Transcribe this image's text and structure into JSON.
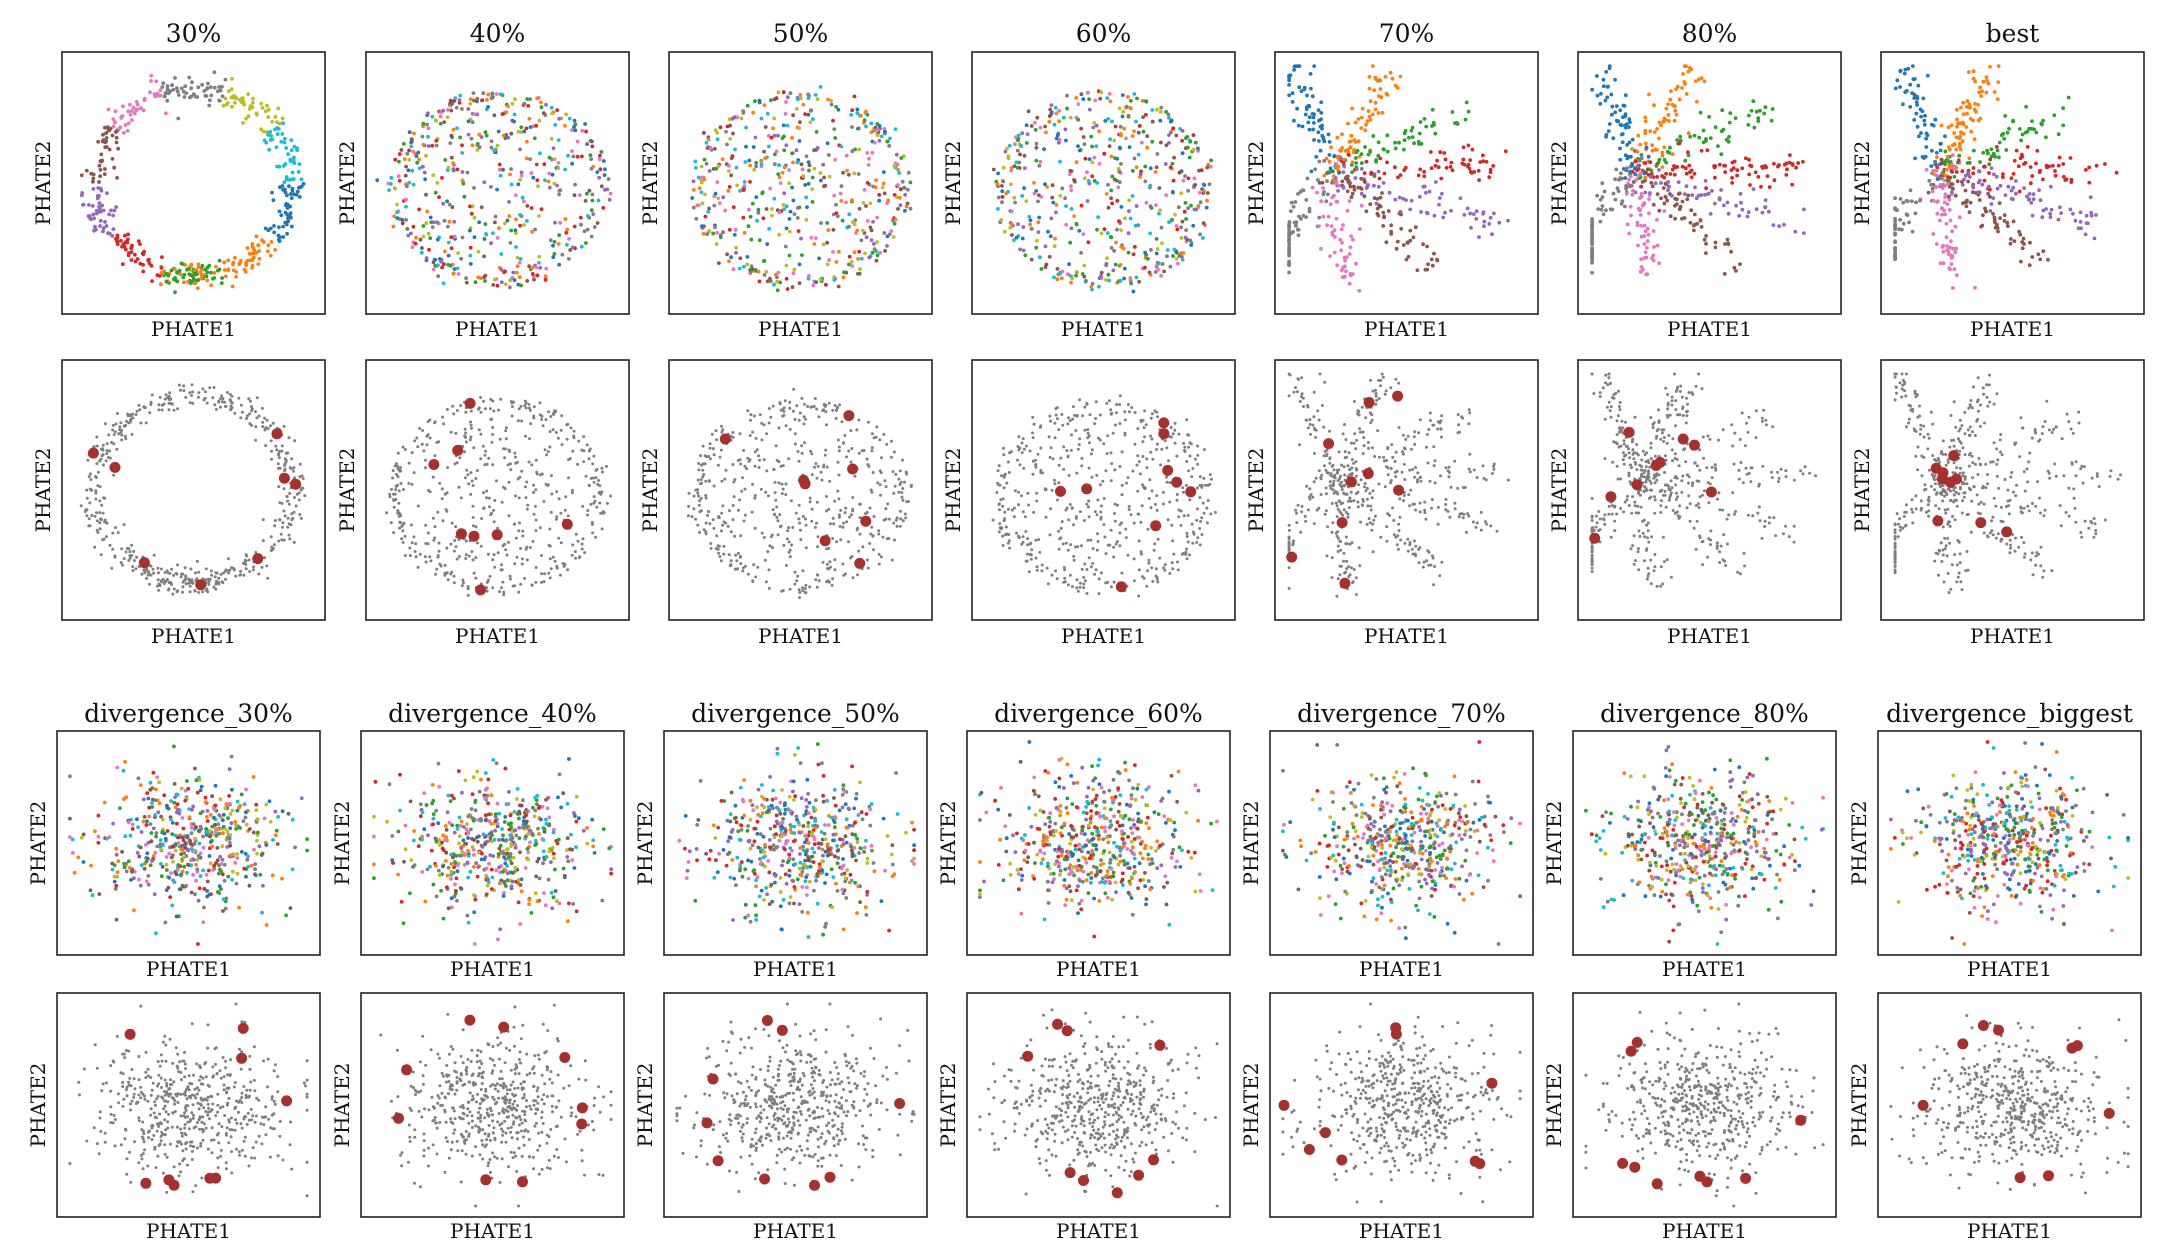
{
  "figure": {
    "xlabel": "PHATE1",
    "ylabel": "PHATE2",
    "highlight_color": "#a8302c",
    "background_point_color": "#7f7f7f",
    "cluster_colors": [
      "#1f77b4",
      "#ff7f0e",
      "#2ca02c",
      "#d62728",
      "#9467bd",
      "#8c564b",
      "#e377c2",
      "#7f7f7f",
      "#bcbd22",
      "#17becf"
    ]
  },
  "chart_data": [
    {
      "type": "scatter",
      "group": "top",
      "row": "colored",
      "title": "30%",
      "shape": "ring-hollow",
      "xlabel": "PHATE1",
      "ylabel": "PHATE2"
    },
    {
      "type": "scatter",
      "group": "top",
      "row": "colored",
      "title": "40%",
      "shape": "ring-filled",
      "xlabel": "PHATE1",
      "ylabel": "PHATE2"
    },
    {
      "type": "scatter",
      "group": "top",
      "row": "colored",
      "title": "50%",
      "shape": "ring-filled",
      "xlabel": "PHATE1",
      "ylabel": "PHATE2"
    },
    {
      "type": "scatter",
      "group": "top",
      "row": "colored",
      "title": "60%",
      "shape": "ring-filled",
      "xlabel": "PHATE1",
      "ylabel": "PHATE2"
    },
    {
      "type": "scatter",
      "group": "top",
      "row": "colored",
      "title": "70%",
      "shape": "branches",
      "xlabel": "PHATE1",
      "ylabel": "PHATE2"
    },
    {
      "type": "scatter",
      "group": "top",
      "row": "colored",
      "title": "80%",
      "shape": "branches",
      "xlabel": "PHATE1",
      "ylabel": "PHATE2"
    },
    {
      "type": "scatter",
      "group": "top",
      "row": "colored",
      "title": "best",
      "shape": "branches",
      "xlabel": "PHATE1",
      "ylabel": "PHATE2"
    },
    {
      "type": "scatter",
      "group": "top",
      "row": "gray",
      "title": "",
      "shape": "ring-hollow",
      "highlights": 8,
      "xlabel": "PHATE1",
      "ylabel": "PHATE2"
    },
    {
      "type": "scatter",
      "group": "top",
      "row": "gray",
      "title": "",
      "shape": "ring-filled",
      "highlights": 8,
      "xlabel": "PHATE1",
      "ylabel": "PHATE2"
    },
    {
      "type": "scatter",
      "group": "top",
      "row": "gray",
      "title": "",
      "shape": "ring-filled",
      "highlights": 8,
      "xlabel": "PHATE1",
      "ylabel": "PHATE2"
    },
    {
      "type": "scatter",
      "group": "top",
      "row": "gray",
      "title": "",
      "shape": "ring-filled",
      "highlights": 9,
      "xlabel": "PHATE1",
      "ylabel": "PHATE2"
    },
    {
      "type": "scatter",
      "group": "top",
      "row": "gray",
      "title": "",
      "shape": "branches",
      "highlights": 9,
      "xlabel": "PHATE1",
      "ylabel": "PHATE2"
    },
    {
      "type": "scatter",
      "group": "top",
      "row": "gray",
      "title": "",
      "shape": "branches",
      "highlights": 9,
      "xlabel": "PHATE1",
      "ylabel": "PHATE2"
    },
    {
      "type": "scatter",
      "group": "top",
      "row": "gray",
      "title": "",
      "shape": "branches",
      "highlights": 9,
      "xlabel": "PHATE1",
      "ylabel": "PHATE2"
    },
    {
      "type": "scatter",
      "group": "bottom",
      "row": "colored",
      "title": "divergence_30%",
      "shape": "blob",
      "xlabel": "PHATE1",
      "ylabel": "PHATE2"
    },
    {
      "type": "scatter",
      "group": "bottom",
      "row": "colored",
      "title": "divergence_40%",
      "shape": "blob",
      "xlabel": "PHATE1",
      "ylabel": "PHATE2"
    },
    {
      "type": "scatter",
      "group": "bottom",
      "row": "colored",
      "title": "divergence_50%",
      "shape": "blob",
      "xlabel": "PHATE1",
      "ylabel": "PHATE2"
    },
    {
      "type": "scatter",
      "group": "bottom",
      "row": "colored",
      "title": "divergence_60%",
      "shape": "blob",
      "xlabel": "PHATE1",
      "ylabel": "PHATE2"
    },
    {
      "type": "scatter",
      "group": "bottom",
      "row": "colored",
      "title": "divergence_70%",
      "shape": "blob",
      "xlabel": "PHATE1",
      "ylabel": "PHATE2"
    },
    {
      "type": "scatter",
      "group": "bottom",
      "row": "colored",
      "title": "divergence_80%",
      "shape": "blob",
      "xlabel": "PHATE1",
      "ylabel": "PHATE2"
    },
    {
      "type": "scatter",
      "group": "bottom",
      "row": "colored",
      "title": "divergence_biggest",
      "shape": "blob",
      "xlabel": "PHATE1",
      "ylabel": "PHATE2"
    },
    {
      "type": "scatter",
      "group": "bottom",
      "row": "gray",
      "title": "",
      "shape": "blob",
      "highlights": 9,
      "xlabel": "PHATE1",
      "ylabel": "PHATE2"
    },
    {
      "type": "scatter",
      "group": "bottom",
      "row": "gray",
      "title": "",
      "shape": "blob",
      "highlights": 9,
      "xlabel": "PHATE1",
      "ylabel": "PHATE2"
    },
    {
      "type": "scatter",
      "group": "bottom",
      "row": "gray",
      "title": "",
      "shape": "blob",
      "highlights": 9,
      "xlabel": "PHATE1",
      "ylabel": "PHATE2"
    },
    {
      "type": "scatter",
      "group": "bottom",
      "row": "gray",
      "title": "",
      "shape": "blob",
      "highlights": 9,
      "xlabel": "PHATE1",
      "ylabel": "PHATE2"
    },
    {
      "type": "scatter",
      "group": "bottom",
      "row": "gray",
      "title": "",
      "shape": "blob",
      "highlights": 9,
      "xlabel": "PHATE1",
      "ylabel": "PHATE2"
    },
    {
      "type": "scatter",
      "group": "bottom",
      "row": "gray",
      "title": "",
      "shape": "blob",
      "highlights": 9,
      "xlabel": "PHATE1",
      "ylabel": "PHATE2"
    },
    {
      "type": "scatter",
      "group": "bottom",
      "row": "gray",
      "title": "",
      "shape": "blob",
      "highlights": 9,
      "xlabel": "PHATE1",
      "ylabel": "PHATE2"
    }
  ]
}
